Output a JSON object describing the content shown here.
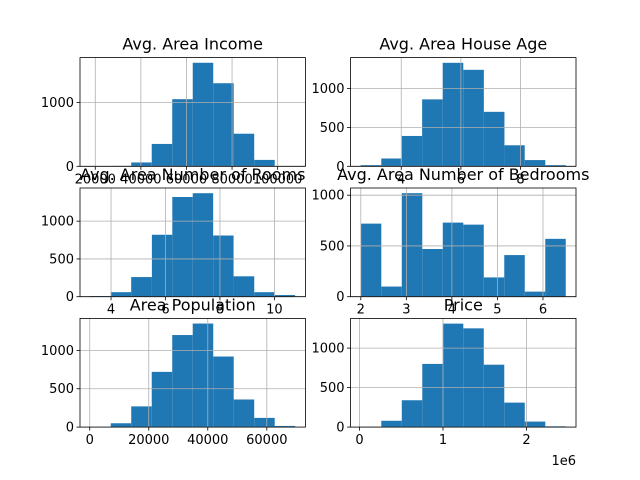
{
  "chart_data": [
    {
      "type": "histogram",
      "title": "Avg. Area Income",
      "color": "#1f77b4",
      "grid": true,
      "bins": [
        17796,
        26787,
        35777,
        44768,
        53758,
        62749,
        71739,
        80730,
        89720,
        98711,
        107701
      ],
      "values": [
        1,
        6,
        60,
        350,
        1050,
        1620,
        1300,
        510,
        100,
        3
      ],
      "xlim": [
        13301,
        112196
      ],
      "xticks": [
        20000,
        40000,
        60000,
        80000,
        100000
      ],
      "ylim": [
        0,
        1701
      ],
      "yticks": [
        0,
        1000
      ]
    },
    {
      "type": "histogram",
      "title": "Avg. Area House Age",
      "color": "#1f77b4",
      "grid": true,
      "bins": [
        2.64,
        3.33,
        4.02,
        4.7,
        5.39,
        6.08,
        6.77,
        7.46,
        8.14,
        8.83,
        9.52
      ],
      "values": [
        15,
        100,
        390,
        860,
        1330,
        1240,
        700,
        270,
        80,
        15
      ],
      "xlim": [
        2.3,
        9.86
      ],
      "xticks": [
        4,
        6,
        8
      ],
      "ylim": [
        0,
        1397
      ],
      "yticks": [
        0,
        500,
        1000
      ]
    },
    {
      "type": "histogram",
      "title": "Avg. Area Number of Rooms",
      "color": "#1f77b4",
      "grid": true,
      "bins": [
        3.24,
        3.99,
        4.74,
        5.5,
        6.25,
        7.0,
        7.75,
        8.5,
        9.26,
        10.01,
        10.76
      ],
      "values": [
        8,
        60,
        260,
        820,
        1320,
        1370,
        810,
        270,
        60,
        22
      ],
      "xlim": [
        2.86,
        11.14
      ],
      "xticks": [
        4,
        6,
        8,
        10
      ],
      "ylim": [
        0,
        1439
      ],
      "yticks": [
        0,
        500,
        1000
      ]
    },
    {
      "type": "histogram",
      "title": "Avg. Area Number of Bedrooms",
      "color": "#1f77b4",
      "grid": true,
      "bins": [
        2.0,
        2.45,
        2.9,
        3.35,
        3.8,
        4.25,
        4.7,
        5.15,
        5.6,
        6.05,
        6.5
      ],
      "values": [
        720,
        100,
        1020,
        470,
        730,
        710,
        190,
        410,
        50,
        570
      ],
      "xlim": [
        1.775,
        6.725
      ],
      "xticks": [
        2,
        3,
        4,
        5,
        6
      ],
      "ylim": [
        0,
        1071
      ],
      "yticks": [
        0,
        500,
        1000
      ]
    },
    {
      "type": "histogram",
      "title": "Area Population",
      "color": "#1f77b4",
      "grid": true,
      "bins": [
        172,
        7117,
        14062,
        21007,
        27952,
        34897,
        41842,
        48787,
        55732,
        62677,
        69622
      ],
      "values": [
        3,
        50,
        270,
        720,
        1200,
        1350,
        920,
        360,
        120,
        15
      ],
      "xlim": [
        -3300,
        73094
      ],
      "xticks": [
        0,
        20000,
        40000,
        60000
      ],
      "ylim": [
        0,
        1417
      ],
      "yticks": [
        0,
        500,
        1000
      ]
    },
    {
      "type": "histogram",
      "title": "Price",
      "color": "#1f77b4",
      "grid": true,
      "x_offset_label": "1e6",
      "bins": [
        0.0159,
        0.2612,
        0.5066,
        0.7519,
        0.9972,
        1.2425,
        1.4879,
        1.7332,
        1.9785,
        2.2238,
        2.4691
      ],
      "values": [
        5,
        80,
        340,
        800,
        1310,
        1250,
        790,
        310,
        70,
        10
      ],
      "xlim": [
        -0.1068,
        2.5917
      ],
      "xticks": [
        0,
        1,
        2
      ],
      "ylim": [
        0,
        1376
      ],
      "yticks": [
        0,
        500,
        1000
      ]
    }
  ]
}
